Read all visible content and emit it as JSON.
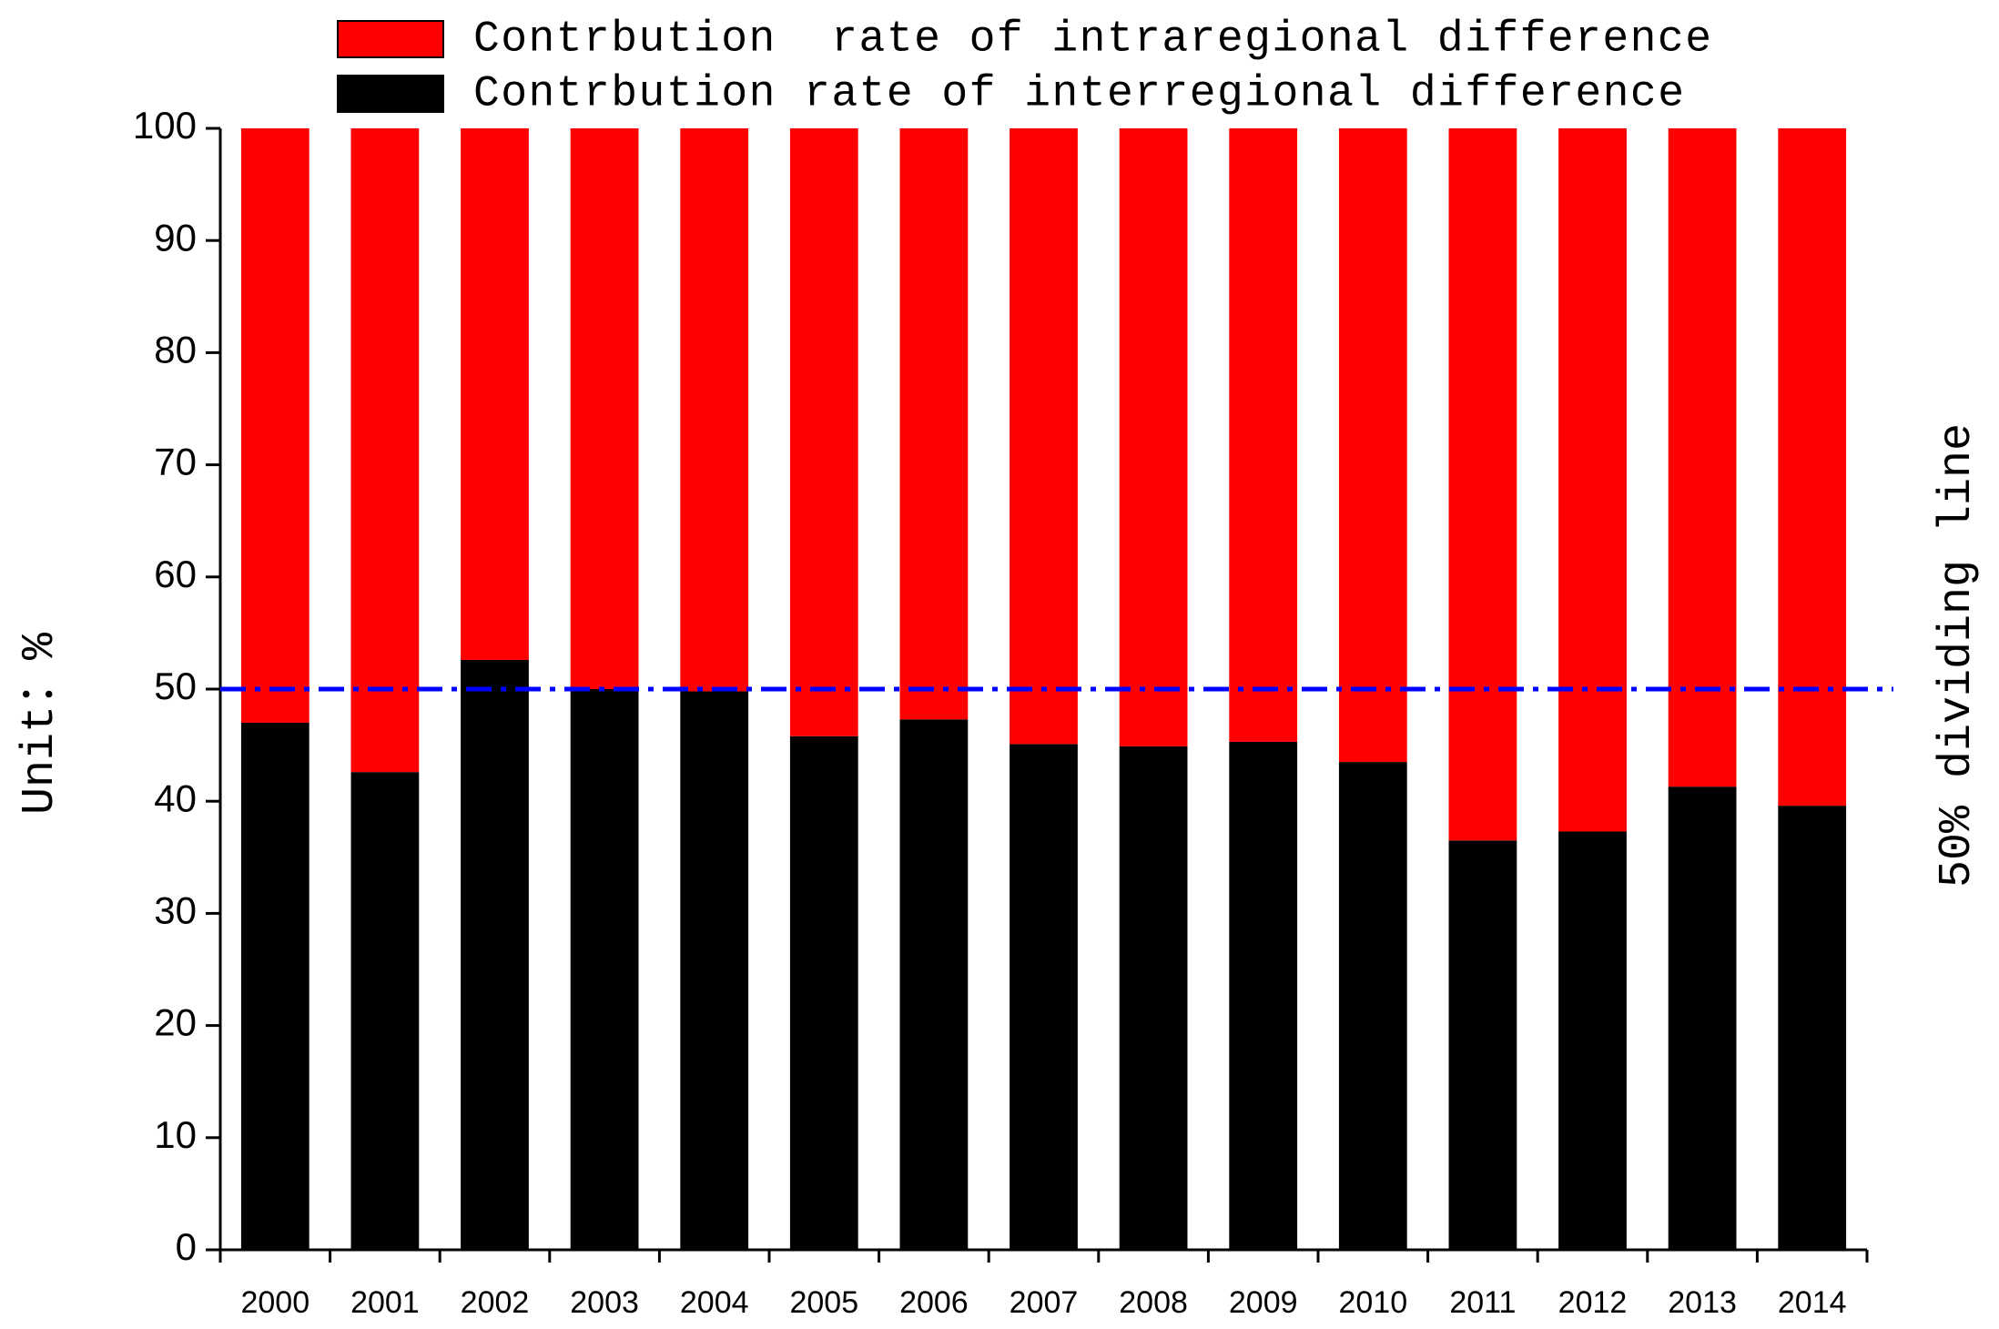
{
  "chart_data": {
    "type": "stacked-bar",
    "y_label": "Unit：%",
    "categories": [
      "2000",
      "2001",
      "2002",
      "2003",
      "2004",
      "2005",
      "2006",
      "2007",
      "2008",
      "2009",
      "2010",
      "2011",
      "2012",
      "2013",
      "2014"
    ],
    "series": [
      {
        "name": "Contrbution  rate of intraregional difference",
        "color": "#ff0000",
        "values": [
          53,
          57.4,
          47.4,
          50,
          50.2,
          54.2,
          52.7,
          54.9,
          55.1,
          54.7,
          56.5,
          63.5,
          62.7,
          58.7,
          60.4
        ]
      },
      {
        "name": "Contrbution rate of interregional difference",
        "color": "#000000",
        "values": [
          47,
          42.6,
          52.6,
          50,
          49.8,
          45.8,
          47.3,
          45.1,
          44.9,
          45.3,
          43.5,
          36.5,
          37.3,
          41.3,
          39.6
        ]
      }
    ],
    "ylim": [
      0,
      100
    ],
    "yticks": [
      0,
      10,
      20,
      30,
      40,
      50,
      60,
      70,
      80,
      90,
      100
    ],
    "reference_line": {
      "value": 50,
      "label": "50% dividing line",
      "color": "#0000ff"
    }
  }
}
